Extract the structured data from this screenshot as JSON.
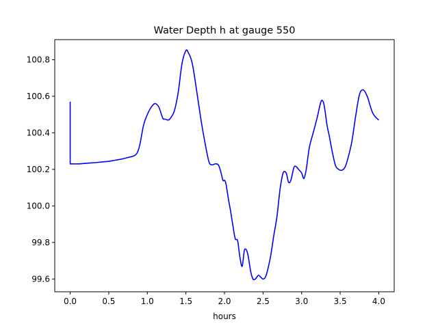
{
  "chart_data": {
    "type": "line",
    "title": "Water Depth h at gauge 550",
    "xlabel": "hours",
    "ylabel": "",
    "xlim": [
      -0.2,
      4.2
    ],
    "ylim": [
      99.53,
      100.91
    ],
    "xticks": [
      0.0,
      0.5,
      1.0,
      1.5,
      2.0,
      2.5,
      3.0,
      3.5,
      4.0
    ],
    "xtick_labels": [
      "0.0",
      "0.5",
      "1.0",
      "1.5",
      "2.0",
      "2.5",
      "3.0",
      "3.5",
      "4.0"
    ],
    "yticks": [
      99.6,
      99.8,
      100.0,
      100.2,
      100.4,
      100.6,
      100.8
    ],
    "ytick_labels": [
      "99.6",
      "99.8",
      "100.0",
      "100.2",
      "100.4",
      "100.6",
      "100.8"
    ],
    "grid": false,
    "colors": {
      "line": "#0000ff",
      "axes": "#000000",
      "background": "#ffffff"
    },
    "series": [
      {
        "x": [
          0.0,
          0.0,
          0.1,
          0.2,
          0.3,
          0.4,
          0.5,
          0.58,
          0.65,
          0.75,
          0.85,
          0.9,
          0.95,
          1.0,
          1.05,
          1.1,
          1.15,
          1.2,
          1.23,
          1.27,
          1.3,
          1.35,
          1.4,
          1.45,
          1.5,
          1.53,
          1.57,
          1.6,
          1.65,
          1.7,
          1.75,
          1.8,
          1.84,
          1.88,
          1.92,
          1.95,
          1.98,
          2.0,
          2.02,
          2.05,
          2.08,
          2.11,
          2.14,
          2.17,
          2.2,
          2.23,
          2.26,
          2.3,
          2.34,
          2.37,
          2.4,
          2.44,
          2.47,
          2.5,
          2.53,
          2.56,
          2.6,
          2.64,
          2.68,
          2.72,
          2.76,
          2.8,
          2.83,
          2.86,
          2.9,
          2.93,
          2.96,
          3.0,
          3.03,
          3.06,
          3.1,
          3.15,
          3.2,
          3.25,
          3.28,
          3.3,
          3.33,
          3.36,
          3.4,
          3.44,
          3.48,
          3.52,
          3.56,
          3.6,
          3.65,
          3.7,
          3.75,
          3.8,
          3.85,
          3.88,
          3.92,
          3.96,
          4.0
        ],
        "y": [
          100.57,
          100.23,
          100.23,
          100.233,
          100.236,
          100.24,
          100.244,
          100.25,
          100.255,
          100.265,
          100.28,
          100.33,
          100.44,
          100.5,
          100.54,
          100.56,
          100.54,
          100.48,
          100.475,
          100.47,
          100.48,
          100.52,
          100.62,
          100.78,
          100.85,
          100.84,
          100.8,
          100.74,
          100.6,
          100.46,
          100.34,
          100.24,
          100.225,
          100.23,
          100.225,
          100.19,
          100.14,
          100.14,
          100.12,
          100.04,
          99.97,
          99.89,
          99.82,
          99.81,
          99.72,
          99.67,
          99.76,
          99.74,
          99.64,
          99.6,
          99.6,
          99.62,
          99.61,
          99.6,
          99.61,
          99.65,
          99.73,
          99.84,
          99.94,
          100.09,
          100.18,
          100.18,
          100.13,
          100.14,
          100.21,
          100.215,
          100.2,
          100.18,
          100.15,
          100.2,
          100.32,
          100.4,
          100.48,
          100.57,
          100.57,
          100.53,
          100.44,
          100.38,
          100.29,
          100.22,
          100.2,
          100.195,
          100.21,
          100.26,
          100.35,
          100.49,
          100.61,
          100.635,
          100.6,
          100.56,
          100.51,
          100.485,
          100.47
        ]
      }
    ]
  }
}
